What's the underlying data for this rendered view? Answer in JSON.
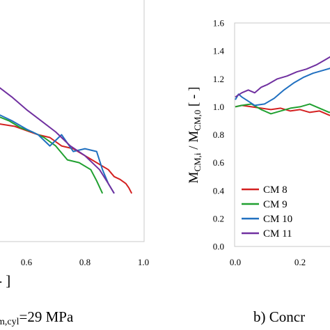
{
  "chart_data": [
    {
      "type": "line",
      "panel": "left",
      "xlim": [
        0.0,
        1.0
      ],
      "x_ticks": [
        "",
        "0.6",
        "0.8",
        "1.0"
      ],
      "xlabel": "- ]",
      "caption_main": "m,cyl",
      "caption_tail": "=29 MPa",
      "series": [
        {
          "color": "#d42020",
          "x": [
            0.0,
            0.03,
            0.06,
            0.1,
            0.14,
            0.2,
            0.26,
            0.32,
            0.38,
            0.44,
            0.5,
            0.56,
            0.6,
            0.64,
            0.68,
            0.72,
            0.76,
            0.8,
            0.84,
            0.88,
            0.9,
            0.92,
            0.94,
            0.95,
            0.96
          ],
          "y": [
            1.02,
            1.0,
            0.99,
            0.98,
            0.99,
            0.96,
            0.95,
            0.94,
            0.92,
            0.9,
            0.88,
            0.86,
            0.83,
            0.8,
            0.78,
            0.72,
            0.7,
            0.65,
            0.6,
            0.55,
            0.5,
            0.48,
            0.45,
            0.42,
            0.38
          ]
        },
        {
          "color": "#20a030",
          "x": [
            0.0,
            0.05,
            0.1,
            0.15,
            0.2,
            0.25,
            0.3,
            0.36,
            0.42,
            0.48,
            0.54,
            0.58,
            0.62,
            0.66,
            0.7,
            0.74,
            0.78,
            0.82,
            0.84,
            0.86
          ],
          "y": [
            1.12,
            1.15,
            1.18,
            1.2,
            1.22,
            1.18,
            1.13,
            1.07,
            1.0,
            0.95,
            0.9,
            0.85,
            0.82,
            0.78,
            0.72,
            0.62,
            0.6,
            0.55,
            0.47,
            0.38
          ]
        },
        {
          "color": "#2070c0",
          "x": [
            0.0,
            0.05,
            0.1,
            0.15,
            0.2,
            0.22,
            0.24,
            0.3,
            0.35,
            0.4,
            0.45,
            0.5,
            0.55,
            0.6,
            0.64,
            0.68,
            0.72,
            0.76,
            0.8,
            0.84,
            0.86,
            0.88,
            0.9
          ],
          "y": [
            1.2,
            1.22,
            1.25,
            1.22,
            1.27,
            1.36,
            1.26,
            1.2,
            1.1,
            1.05,
            1.0,
            0.95,
            0.9,
            0.84,
            0.8,
            0.72,
            0.8,
            0.68,
            0.7,
            0.68,
            0.55,
            0.45,
            0.38
          ]
        },
        {
          "color": "#7030a0",
          "x": [
            0.0,
            0.05,
            0.1,
            0.15,
            0.2,
            0.25,
            0.3,
            0.35,
            0.4,
            0.45,
            0.5,
            0.55,
            0.6,
            0.65,
            0.7,
            0.75,
            0.8,
            0.85,
            0.88,
            0.9
          ],
          "y": [
            1.65,
            1.62,
            1.6,
            1.57,
            1.53,
            1.47,
            1.42,
            1.37,
            1.3,
            1.22,
            1.15,
            1.07,
            0.98,
            0.9,
            0.82,
            0.72,
            0.65,
            0.55,
            0.45,
            0.38
          ]
        }
      ]
    },
    {
      "type": "line",
      "panel": "right",
      "xlim": [
        0.0,
        0.45
      ],
      "ylim": [
        0.0,
        1.6
      ],
      "x_ticks": [
        "0.0",
        "0.2"
      ],
      "y_ticks": [
        "0.0",
        "0.2",
        "0.4",
        "0.6",
        "0.8",
        "1.0",
        "1.2",
        "1.4",
        "1.6"
      ],
      "ylabel_main": "M",
      "ylabel_sub1": "CM,i",
      "ylabel_mid": " / M",
      "ylabel_sub2": "CM,0",
      "ylabel_tail": " [ - ]",
      "caption": "b) Concr",
      "legend_position": "lower-left",
      "series": [
        {
          "name": "CM 8",
          "color": "#d42020",
          "x": [
            0.0,
            0.02,
            0.05,
            0.08,
            0.11,
            0.14,
            0.17,
            0.2,
            0.23,
            0.26,
            0.29,
            0.32,
            0.35,
            0.38,
            0.41,
            0.43
          ],
          "y": [
            1.0,
            1.01,
            1.0,
            0.99,
            0.98,
            0.99,
            0.97,
            0.98,
            0.96,
            0.97,
            0.94,
            0.92,
            0.9,
            0.88,
            0.86,
            0.8
          ]
        },
        {
          "name": "CM 9",
          "color": "#20a030",
          "x": [
            0.0,
            0.02,
            0.05,
            0.08,
            0.11,
            0.14,
            0.17,
            0.2,
            0.23,
            0.26,
            0.29,
            0.32,
            0.34,
            0.36,
            0.38,
            0.4,
            0.42
          ],
          "y": [
            1.0,
            1.01,
            1.02,
            0.98,
            0.95,
            0.97,
            0.99,
            1.0,
            1.02,
            0.99,
            0.96,
            0.97,
            0.9,
            0.85,
            0.8,
            0.76,
            0.74
          ]
        },
        {
          "name": "CM 10",
          "color": "#2070c0",
          "x": [
            0.0,
            0.01,
            0.02,
            0.04,
            0.06,
            0.09,
            0.12,
            0.15,
            0.18,
            0.21,
            0.24,
            0.27,
            0.3,
            0.33,
            0.36,
            0.39,
            0.42,
            0.44
          ],
          "y": [
            1.05,
            1.09,
            1.07,
            1.04,
            1.01,
            1.02,
            1.06,
            1.12,
            1.17,
            1.21,
            1.24,
            1.26,
            1.28,
            1.28,
            1.29,
            1.27,
            1.28,
            1.26
          ]
        },
        {
          "name": "CM 11",
          "color": "#7030a0",
          "x": [
            0.0,
            0.02,
            0.04,
            0.06,
            0.08,
            0.1,
            0.13,
            0.16,
            0.19,
            0.22,
            0.25,
            0.28,
            0.31,
            0.34,
            0.37,
            0.4,
            0.42,
            0.44
          ],
          "y": [
            1.07,
            1.1,
            1.12,
            1.1,
            1.14,
            1.16,
            1.2,
            1.22,
            1.25,
            1.27,
            1.3,
            1.34,
            1.38,
            1.43,
            1.45,
            1.48,
            1.52,
            1.54
          ]
        }
      ]
    }
  ]
}
